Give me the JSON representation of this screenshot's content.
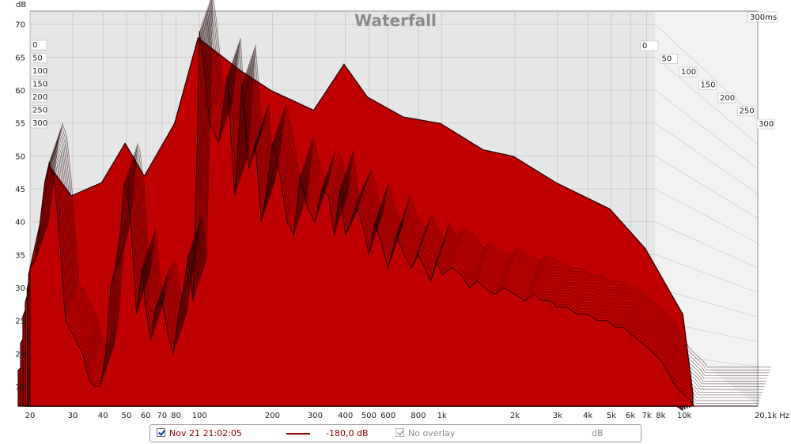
{
  "chart_data": {
    "type": "area",
    "title": "Waterfall",
    "ylabel": "dB",
    "xunit": "Hz",
    "xscale": "log",
    "xlim": [
      20,
      20100
    ],
    "ylim": [
      12,
      72
    ],
    "zunit": "ms",
    "zlim": [
      0,
      300
    ],
    "y_ticks": [
      15,
      20,
      25,
      30,
      35,
      40,
      45,
      50,
      55,
      60,
      65,
      70
    ],
    "x_ticks": [
      {
        "value": 20,
        "label": "20"
      },
      {
        "value": 30,
        "label": "30"
      },
      {
        "value": 40,
        "label": "40"
      },
      {
        "value": 50,
        "label": "50"
      },
      {
        "value": 60,
        "label": "60"
      },
      {
        "value": 70,
        "label": "70"
      },
      {
        "value": 80,
        "label": "80"
      },
      {
        "value": 100,
        "label": "100"
      },
      {
        "value": 200,
        "label": "200"
      },
      {
        "value": 300,
        "label": "300"
      },
      {
        "value": 400,
        "label": "400"
      },
      {
        "value": 500,
        "label": "500"
      },
      {
        "value": 600,
        "label": "600"
      },
      {
        "value": 800,
        "label": "800"
      },
      {
        "value": 1000,
        "label": "1k"
      },
      {
        "value": 2000,
        "label": "2k"
      },
      {
        "value": 3000,
        "label": "3k"
      },
      {
        "value": 4000,
        "label": "4k"
      },
      {
        "value": 5000,
        "label": "5k"
      },
      {
        "value": 6000,
        "label": "6k"
      },
      {
        "value": 7000,
        "label": "7k"
      },
      {
        "value": 8000,
        "label": "8k"
      },
      {
        "value": 10000,
        "label": "10k"
      },
      {
        "value": 20100,
        "label": "20,1k Hz"
      }
    ],
    "time_ticks": [
      {
        "value": 0,
        "label": "0"
      },
      {
        "value": 50,
        "label": "50"
      },
      {
        "value": 100,
        "label": "100"
      },
      {
        "value": 150,
        "label": "150"
      },
      {
        "value": 200,
        "label": "200"
      },
      {
        "value": 250,
        "label": "250"
      },
      {
        "value": 300,
        "label": "300"
      }
    ],
    "time_axis_end_label": "300ms",
    "front_slice": {
      "time_ms": 0,
      "x": [
        20,
        21,
        22,
        23,
        24,
        25,
        26,
        27,
        28,
        30,
        33,
        35,
        37,
        39,
        41,
        43,
        45,
        47,
        49,
        50,
        52,
        55,
        58,
        60,
        63,
        66,
        70,
        74,
        78,
        82,
        86,
        90,
        94,
        98,
        100,
        104,
        110,
        120,
        130,
        140,
        150,
        160,
        170,
        180,
        190,
        200,
        215,
        230,
        245,
        260,
        280,
        300,
        320,
        340,
        360,
        380,
        400,
        425,
        450,
        475,
        500,
        530,
        560,
        600,
        650,
        700,
        750,
        800,
        850,
        900,
        950,
        1000,
        1100,
        1200,
        1300,
        1400,
        1500,
        1650,
        1800,
        2000,
        2200,
        2400,
        2600,
        2800,
        3000,
        3300,
        3600,
        4000,
        4400,
        4800,
        5200,
        5600,
        6000,
        6500,
        7000,
        7500,
        8000,
        8600,
        9200,
        9800,
        10500,
        11000,
        20100
      ],
      "y": [
        33,
        34,
        40,
        46,
        49,
        47,
        41,
        33,
        25,
        23,
        20,
        16,
        15,
        15,
        20,
        30,
        33,
        38,
        46,
        45,
        40,
        26,
        33,
        27,
        22,
        27,
        28,
        23,
        20,
        26,
        30,
        35,
        28,
        52,
        69,
        64,
        55,
        52,
        62,
        44,
        61,
        48,
        52,
        40,
        45,
        52,
        47,
        40,
        38,
        47,
        42,
        40,
        45,
        44,
        38,
        45,
        38,
        40,
        42,
        39,
        35,
        40,
        37,
        33,
        38,
        35,
        33,
        35,
        33,
        31,
        34,
        32,
        33,
        32,
        30,
        31,
        30,
        29,
        30,
        29,
        28,
        29,
        28,
        28,
        27,
        27,
        26,
        26,
        25,
        25,
        24,
        24,
        23,
        22,
        21,
        20,
        19,
        17,
        15,
        14,
        13,
        12,
        12
      ]
    },
    "decay_slices": [
      {
        "time_ms": 30,
        "x": [
          20,
          25,
          30,
          40,
          50,
          60,
          80,
          100,
          150,
          200,
          300,
          400,
          500,
          700,
          1000,
          1500,
          2000,
          3000,
          5000,
          7000,
          10000,
          11000
        ],
        "y": [
          32,
          48,
          44,
          46,
          52,
          47,
          55,
          68,
          63,
          60,
          57,
          64,
          59,
          56,
          55,
          51,
          50,
          46,
          42,
          36,
          26,
          14
        ]
      },
      {
        "time_ms": 60,
        "x": [
          20,
          25,
          30,
          40,
          50,
          60,
          80,
          100,
          150,
          200,
          300,
          400,
          500,
          700,
          1000,
          1500,
          2000,
          3000,
          5000,
          7000,
          10000,
          11000
        ],
        "y": [
          30,
          45,
          42,
          44,
          49,
          44,
          51,
          64,
          60,
          57,
          54,
          60,
          56,
          53,
          52,
          48,
          47,
          43,
          39,
          34,
          24,
          13
        ]
      },
      {
        "time_ms": 100,
        "x": [
          20,
          25,
          30,
          40,
          50,
          60,
          80,
          100,
          150,
          200,
          300,
          400,
          500,
          700,
          1000,
          1500,
          2000,
          3000,
          5000,
          7000,
          10000,
          11000
        ],
        "y": [
          28,
          40,
          38,
          40,
          44,
          40,
          46,
          58,
          55,
          52,
          49,
          54,
          51,
          48,
          47,
          44,
          42,
          39,
          35,
          31,
          22,
          12
        ]
      },
      {
        "time_ms": 150,
        "x": [
          20,
          25,
          30,
          40,
          50,
          60,
          80,
          100,
          150,
          200,
          300,
          400,
          500,
          700,
          1000,
          1500,
          2000,
          3000,
          5000,
          7000,
          10000,
          11000
        ],
        "y": [
          26,
          35,
          34,
          35,
          38,
          35,
          40,
          50,
          48,
          45,
          43,
          46,
          44,
          42,
          41,
          38,
          37,
          34,
          31,
          27,
          19,
          12
        ]
      },
      {
        "time_ms": 200,
        "x": [
          20,
          25,
          30,
          40,
          50,
          60,
          80,
          100,
          150,
          200,
          300,
          400,
          500,
          700,
          1000,
          1500,
          2000,
          3000,
          5000,
          7000,
          10000,
          11000
        ],
        "y": [
          22,
          29,
          28,
          29,
          31,
          29,
          33,
          41,
          39,
          37,
          35,
          37,
          36,
          34,
          33,
          31,
          30,
          28,
          25,
          22,
          16,
          12
        ]
      },
      {
        "time_ms": 250,
        "x": [
          20,
          25,
          30,
          40,
          50,
          60,
          80,
          100,
          150,
          200,
          300,
          400,
          500,
          700,
          1000,
          1500,
          2000,
          3000,
          5000,
          7000,
          10000,
          11000
        ],
        "y": [
          18,
          22,
          21,
          22,
          23,
          22,
          25,
          30,
          29,
          27,
          26,
          27,
          26,
          25,
          24,
          23,
          22,
          20,
          18,
          16,
          13,
          12
        ]
      }
    ],
    "colors": {
      "fill": "#bf0000",
      "outline": "#200000",
      "back_wall": "#e6e6e6",
      "side_wall": "#f2f2f2",
      "grid": "#c8c8c8"
    }
  },
  "legend": {
    "trace_name": "Nov 21 21:02:05",
    "trace_level": "-180,0 dB",
    "overlay_label": "No overlay",
    "unit": "dB",
    "trace_color": "#8b0000"
  }
}
